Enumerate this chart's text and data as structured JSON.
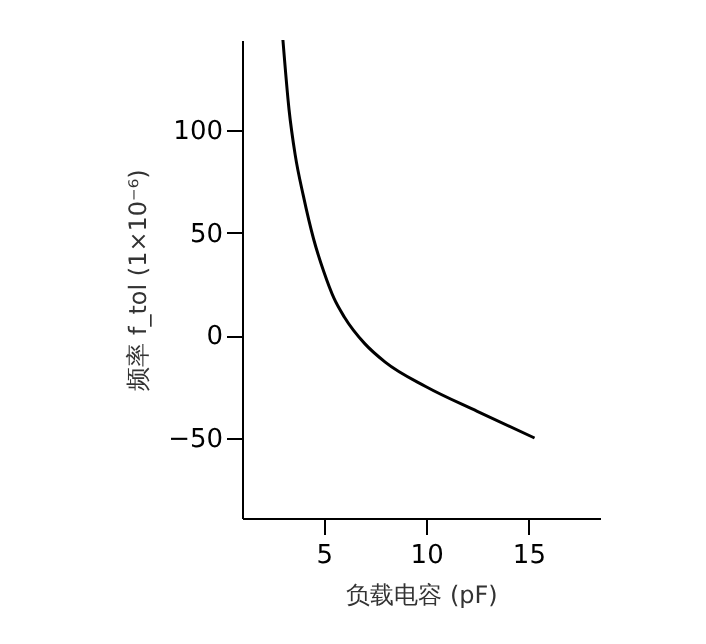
{
  "chart_data": {
    "type": "line",
    "xlabel": "负载电容 (pF)",
    "ylabel": "频率 f_tol (1×10⁻⁶)",
    "x": [
      3.0,
      3.3,
      3.6,
      4.0,
      4.5,
      5.0,
      5.5,
      6.0,
      7.0,
      8.0,
      10.0,
      12.5,
      15.3
    ],
    "series": [
      {
        "color": "#000000",
        "values": [
          144,
          110,
          88,
          68,
          47,
          31,
          18,
          9,
          -4,
          -13,
          -25,
          -37,
          -50
        ]
      }
    ],
    "xlim": [
      1,
      18.5
    ],
    "ylim": [
      -89,
      144
    ],
    "xticks": [
      5,
      10,
      15
    ],
    "yticks": [
      -50,
      0,
      50,
      100
    ],
    "grid": false,
    "marker": "none",
    "line_style": "solid"
  }
}
